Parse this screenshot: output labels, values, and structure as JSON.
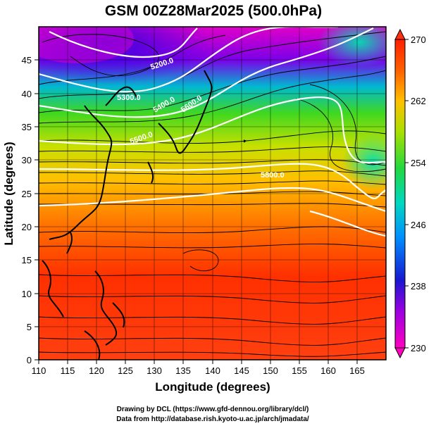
{
  "title": "GSM 00Z28Mar2025 (500.0hPa)",
  "x_axis": {
    "label": "Longitude (degrees)",
    "ticks": [
      "110",
      "115",
      "120",
      "125",
      "130",
      "135",
      "140",
      "145",
      "150",
      "155",
      "160",
      "165"
    ],
    "range": [
      110,
      170
    ]
  },
  "y_axis": {
    "label": "Latitude  (degrees)",
    "ticks": [
      "0",
      "5",
      "10",
      "15",
      "20",
      "25",
      "30",
      "35",
      "40",
      "45"
    ],
    "range": [
      0,
      50
    ]
  },
  "colorbar": {
    "ticks": [
      "270",
      "262",
      "254",
      "246",
      "238",
      "230"
    ],
    "min": 230,
    "max": 270,
    "colors": [
      "#ff00c0",
      "#8a00e0",
      "#1010d0",
      "#0090ff",
      "#00d8c0",
      "#20d840",
      "#a8e000",
      "#ffc000",
      "#ff6000",
      "#ff2000"
    ]
  },
  "contour_labels": [
    {
      "text": "5200.0",
      "lon": 128.6,
      "lat": 45.5
    },
    {
      "text": "5300.0",
      "lon": 122.0,
      "lat": 41.0
    },
    {
      "text": "5400.0",
      "lon": 130.0,
      "lat": 38.5
    },
    {
      "text": "5500.0",
      "lon": 125.5,
      "lat": 35.0
    },
    {
      "text": "5600.0",
      "lon": 132.0,
      "lat": 32.0
    },
    {
      "text": "5800.0",
      "lon": 151.0,
      "lat": 28.5
    }
  ],
  "credits": {
    "line1": "Drawing by DCL (https://www.gfd-dennou.org/library/dcl/)",
    "line2": "Data from http://database.rish.kyoto-u.ac.jp/arch/jmadata/"
  }
}
